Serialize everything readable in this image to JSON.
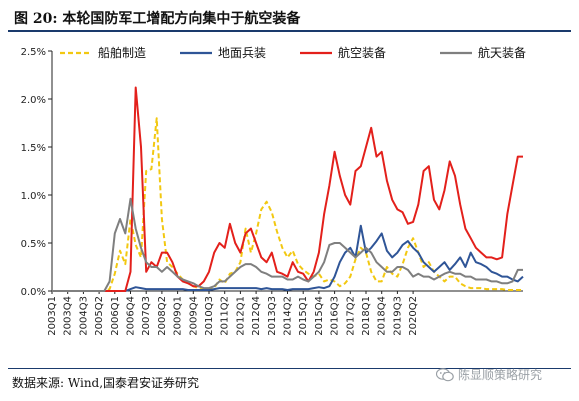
{
  "figure": {
    "title": "图 20:  本轮国防军工增配方向集中于航空装备",
    "source": "数据来源:  Wind,国泰君安证券研究",
    "watermark": "陈显顺策略研究"
  },
  "chart_data": {
    "type": "line",
    "ylim": [
      0,
      0.025
    ],
    "y_ticks": [
      "0.0%",
      "0.5%",
      "1.0%",
      "1.5%",
      "2.0%",
      "2.5%"
    ],
    "x_tick_labels": [
      "2003Q1",
      "2003Q4",
      "2004Q3",
      "2005Q2",
      "2006Q1",
      "2006Q4",
      "2007Q3",
      "2008Q2",
      "2009Q1",
      "2009Q4",
      "2010Q3",
      "2011Q2",
      "2012Q1",
      "2012Q4",
      "2013Q3",
      "2014Q2",
      "2015Q1",
      "2015Q4",
      "2016Q3",
      "2017Q2",
      "2018Q1",
      "2018Q4",
      "2019Q3",
      "2020Q2"
    ],
    "legend_position": "top",
    "grid": false,
    "series": [
      {
        "name": "船舶制造",
        "color": "#f2c811",
        "dash": "dashed",
        "values": [
          0,
          0,
          0,
          0,
          0,
          0,
          0,
          0,
          0,
          0,
          0,
          0.0002,
          0.0018,
          0.0042,
          0.0028,
          0.0075,
          0.0048,
          0.0035,
          0.0125,
          0.0127,
          0.018,
          0.0075,
          0.003,
          0.0025,
          0.0018,
          0.0012,
          0.0008,
          0.0005,
          0.0003,
          0.0002,
          0.0002,
          0.0003,
          0.0012,
          0.0008,
          0.0018,
          0.002,
          0.003,
          0.0065,
          0.004,
          0.006,
          0.0085,
          0.0093,
          0.0082,
          0.0062,
          0.0045,
          0.0035,
          0.0042,
          0.0028,
          0.0022,
          0.0018,
          0.0015,
          0.0018,
          0.001,
          0.0012,
          0.001,
          0.0005,
          0.0008,
          0.0015,
          0.0033,
          0.0045,
          0.004,
          0.002,
          0.001,
          0.001,
          0.0025,
          0.0018,
          0.0015,
          0.0028,
          0.0045,
          0.0055,
          0.004,
          0.0025,
          0.003,
          0.002,
          0.0015,
          0.001,
          0.0015,
          0.0015,
          0.0008,
          0.0005,
          0.0003,
          0.0003,
          0.0003,
          0.0002,
          0.0002,
          0.0002,
          0.0002,
          0.0001,
          0.0001,
          0.0001,
          0.0001
        ]
      },
      {
        "name": "地面兵装",
        "color": "#2f5597",
        "dash": "solid",
        "values": [
          0,
          0,
          0,
          0,
          0,
          0,
          0,
          0,
          0,
          0,
          0,
          0,
          0,
          0,
          0,
          0.0002,
          0.0004,
          0.0003,
          0.0002,
          0.0002,
          0.0002,
          0.0002,
          0.0002,
          0.0002,
          0.0002,
          0.0002,
          0.0001,
          0.0001,
          0.0001,
          0.0001,
          0.0001,
          0.0002,
          0.0003,
          0.0003,
          0.0003,
          0.0003,
          0.0003,
          0.0003,
          0.0003,
          0.0003,
          0.0002,
          0.0003,
          0.0002,
          0.0002,
          0.0002,
          0.0001,
          0.0002,
          0.0002,
          0.0002,
          0.0002,
          0.0003,
          0.0004,
          0.0003,
          0.0005,
          0.0015,
          0.003,
          0.004,
          0.0045,
          0.0035,
          0.0068,
          0.004,
          0.0045,
          0.0052,
          0.006,
          0.0042,
          0.0035,
          0.004,
          0.0048,
          0.0052,
          0.0045,
          0.004,
          0.003,
          0.0025,
          0.002,
          0.0025,
          0.003,
          0.0022,
          0.0028,
          0.0035,
          0.0025,
          0.004,
          0.003,
          0.0028,
          0.0025,
          0.002,
          0.0018,
          0.0015,
          0.0015,
          0.0012,
          0.001,
          0.0015
        ]
      },
      {
        "name": "航空装备",
        "color": "#e3201b",
        "dash": "solid",
        "values": [
          0,
          0,
          0,
          0,
          0,
          0,
          0,
          0,
          0,
          0,
          0,
          0,
          0,
          0,
          0,
          0.002,
          0.0212,
          0.015,
          0.002,
          0.003,
          0.0025,
          0.004,
          0.004,
          0.003,
          0.0015,
          0.001,
          0.0008,
          0.0005,
          0.0005,
          0.001,
          0.002,
          0.004,
          0.005,
          0.0045,
          0.007,
          0.005,
          0.004,
          0.006,
          0.0065,
          0.005,
          0.0035,
          0.003,
          0.004,
          0.002,
          0.0018,
          0.0015,
          0.003,
          0.002,
          0.0018,
          0.001,
          0.002,
          0.004,
          0.008,
          0.011,
          0.0145,
          0.012,
          0.01,
          0.009,
          0.0125,
          0.013,
          0.015,
          0.017,
          0.014,
          0.0145,
          0.0115,
          0.0095,
          0.0085,
          0.0082,
          0.007,
          0.0072,
          0.009,
          0.0125,
          0.013,
          0.0095,
          0.0085,
          0.0105,
          0.0135,
          0.012,
          0.009,
          0.0065,
          0.0055,
          0.0045,
          0.004,
          0.0035,
          0.0035,
          0.0033,
          0.0035,
          0.008,
          0.011,
          0.014,
          0.014
        ]
      },
      {
        "name": "航天装备",
        "color": "#7f7f7f",
        "dash": "solid",
        "values": [
          0,
          0,
          0,
          0,
          0,
          0,
          0,
          0,
          0,
          0,
          0,
          0.001,
          0.006,
          0.0075,
          0.006,
          0.0096,
          0.0065,
          0.0045,
          0.003,
          0.0025,
          0.0025,
          0.002,
          0.0025,
          0.002,
          0.0015,
          0.0012,
          0.001,
          0.0008,
          0.0005,
          0.0003,
          0.0003,
          0.0005,
          0.001,
          0.001,
          0.0015,
          0.002,
          0.0025,
          0.0028,
          0.0028,
          0.0025,
          0.002,
          0.0018,
          0.0015,
          0.0015,
          0.0015,
          0.0012,
          0.0012,
          0.0015,
          0.0012,
          0.001,
          0.0015,
          0.002,
          0.003,
          0.0048,
          0.005,
          0.005,
          0.0045,
          0.004,
          0.0035,
          0.004,
          0.0045,
          0.004,
          0.003,
          0.0025,
          0.002,
          0.002,
          0.0025,
          0.0025,
          0.0022,
          0.0015,
          0.0018,
          0.0015,
          0.0015,
          0.0012,
          0.0015,
          0.0018,
          0.002,
          0.0018,
          0.0018,
          0.0015,
          0.0015,
          0.0012,
          0.0012,
          0.0012,
          0.001,
          0.001,
          0.0008,
          0.0008,
          0.001,
          0.0022,
          0.0022
        ]
      }
    ]
  }
}
